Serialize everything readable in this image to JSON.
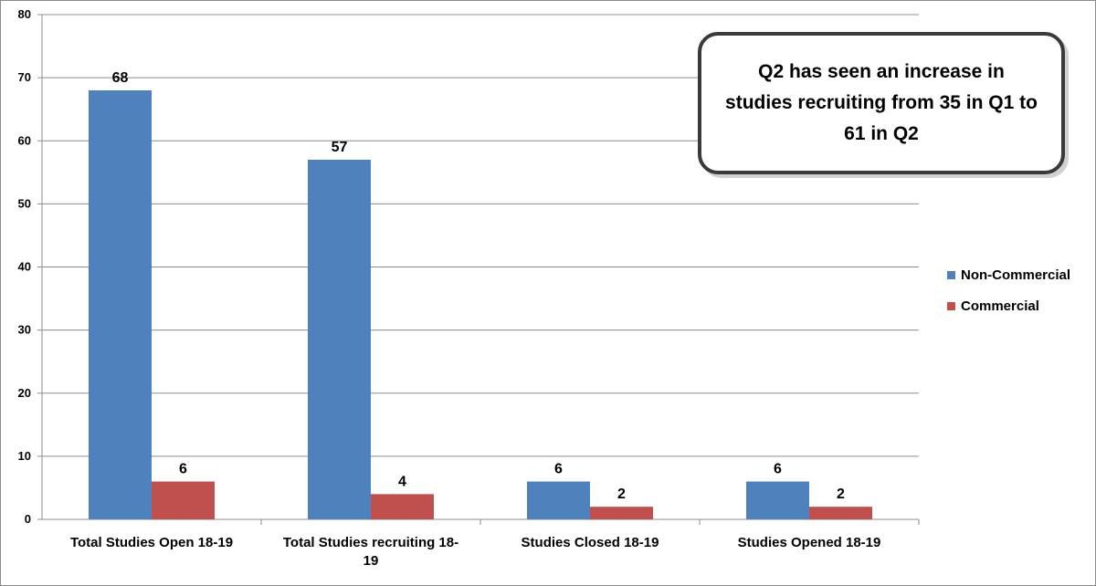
{
  "chart_data": {
    "type": "bar",
    "categories": [
      "Total Studies Open 18-19",
      "Total Studies recruiting 18-19",
      "Studies Closed 18-19",
      "Studies Opened 18-19"
    ],
    "category_label_lines": [
      [
        "Total Studies Open 18-19"
      ],
      [
        "Total Studies recruiting 18-",
        "19"
      ],
      [
        "Studies Closed 18-19"
      ],
      [
        "Studies Opened 18-19"
      ]
    ],
    "series": [
      {
        "name": "Non-Commercial",
        "color": "#4f81bd",
        "values": [
          68,
          57,
          6,
          6
        ]
      },
      {
        "name": "Commercial",
        "color": "#c0504d",
        "values": [
          6,
          4,
          2,
          2
        ]
      }
    ],
    "ylim": [
      0,
      80
    ],
    "yticks": [
      0,
      10,
      20,
      30,
      40,
      50,
      60,
      70,
      80
    ],
    "grid": true,
    "legend_position": "right",
    "data_labels": true
  },
  "annotation": {
    "text": "Q2 has seen an increase in studies recruiting from 35 in Q1 to 61 in Q2"
  }
}
